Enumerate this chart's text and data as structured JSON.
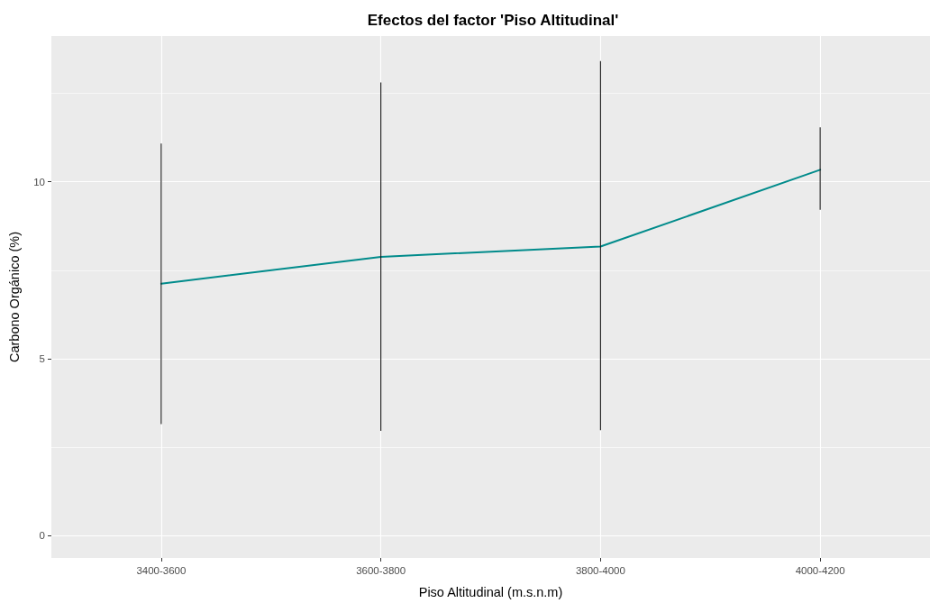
{
  "chart_data": {
    "type": "line",
    "title": "Efectos del factor 'Piso Altitudinal'",
    "xlabel": "Piso Altitudinal (m.s.n.m)",
    "ylabel": "Carbono Orgánico (%)",
    "categories": [
      "3400-3600",
      "3600-3800",
      "3800-4000",
      "4000-4200"
    ],
    "series": [
      {
        "color": "#008b8b",
        "values": [
          7.12,
          7.88,
          8.17,
          10.34
        ],
        "errors": [
          [
            3.15,
            11.08
          ],
          [
            2.96,
            12.81
          ],
          [
            2.98,
            13.41
          ],
          [
            9.21,
            11.54
          ]
        ]
      }
    ],
    "ylim": [
      -0.63,
      14.12
    ],
    "yticks": [
      0,
      {
        "value": 2.5,
        "label": null
      },
      5,
      {
        "value": 7.5,
        "label": null
      },
      10,
      {
        "value": 12.5,
        "label": null
      }
    ],
    "grid": true
  }
}
